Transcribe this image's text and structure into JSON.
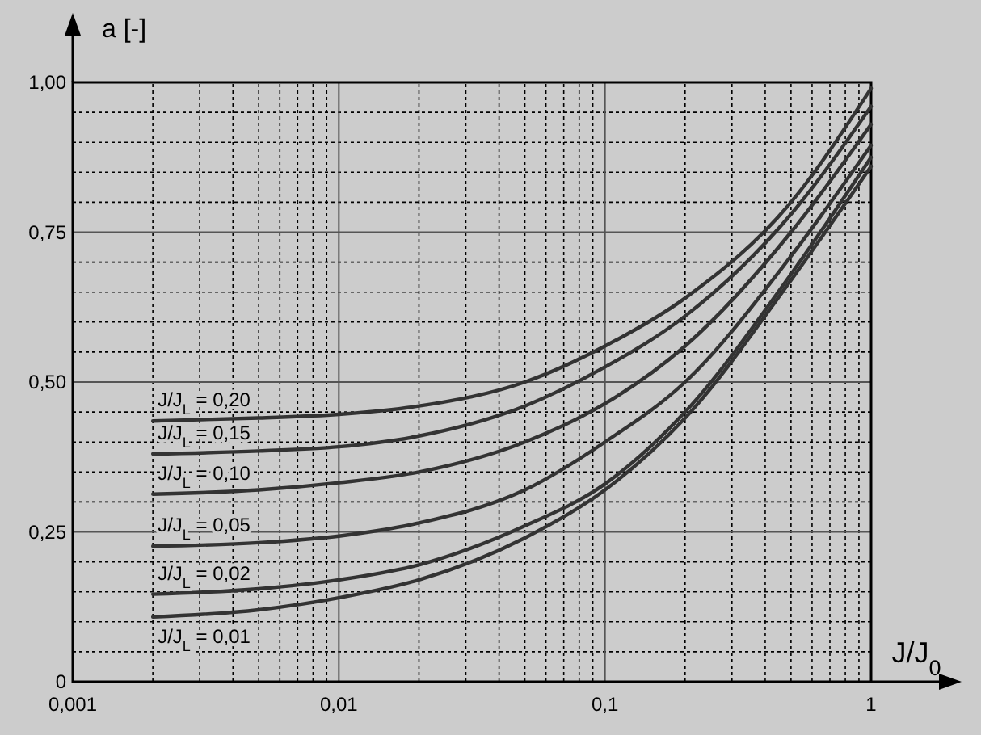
{
  "chart_data": {
    "type": "line",
    "xlabel": "J/J$_{0}$",
    "ylabel": "a [-]",
    "log": "x",
    "grid": true,
    "legend": false,
    "marker": "none",
    "line_style": "solid",
    "xlim": [
      0.001,
      1
    ],
    "ylim": [
      0,
      1
    ],
    "xticks": [
      {
        "value": 0.001,
        "label": "0,001"
      },
      {
        "value": 0.01,
        "label": "0,01"
      },
      {
        "value": 0.1,
        "label": "0,1"
      },
      1
    ],
    "yticks": [
      0,
      {
        "value": 0.25,
        "label": "0,25"
      },
      {
        "value": 0.5,
        "label": "0,50"
      },
      {
        "value": 0.75,
        "label": "0,75"
      },
      {
        "value": 1,
        "label": "1,00"
      }
    ],
    "x": [
      0.002,
      0.005,
      0.01,
      0.02,
      0.05,
      0.1,
      0.2,
      0.5,
      1
    ],
    "series": [
      {
        "name": "J/J$_{L}$ = 0,20",
        "color": "#333333",
        "values": [
          0.435,
          0.44,
          0.446,
          0.46,
          0.5,
          0.56,
          0.64,
          0.8,
          0.99
        ]
      },
      {
        "name": "J/J$_{L}$ = 0,15",
        "color": "#333333",
        "values": [
          0.38,
          0.385,
          0.392,
          0.41,
          0.46,
          0.525,
          0.61,
          0.78,
          0.96
        ]
      },
      {
        "name": "J/J$_{L}$ = 0,10",
        "color": "#333333",
        "values": [
          0.313,
          0.32,
          0.332,
          0.35,
          0.4,
          0.464,
          0.56,
          0.75,
          0.93
        ]
      },
      {
        "name": "J/J$_{L}$ = 0,05",
        "color": "#333333",
        "values": [
          0.226,
          0.232,
          0.243,
          0.265,
          0.32,
          0.4,
          0.5,
          0.71,
          0.895
        ]
      },
      {
        "name": "J/J$_{L}$ = 0,02",
        "color": "#333333",
        "values": [
          0.146,
          0.155,
          0.17,
          0.195,
          0.26,
          0.33,
          0.45,
          0.68,
          0.875
        ]
      },
      {
        "name": "J/J$_{L}$ = 0,01",
        "color": "#333333",
        "values": [
          0.108,
          0.12,
          0.14,
          0.17,
          0.24,
          0.32,
          0.44,
          0.67,
          0.86
        ]
      }
    ]
  }
}
